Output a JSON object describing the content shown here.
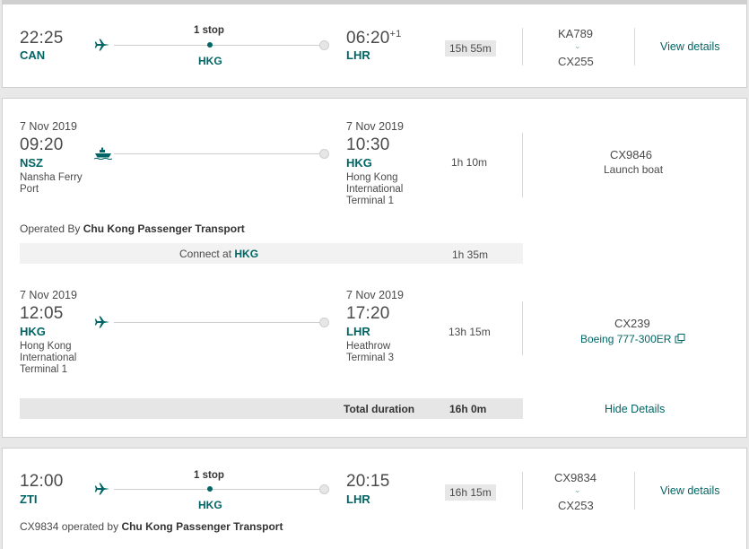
{
  "card1": {
    "dep_time": "22:25",
    "dep_code": "CAN",
    "stops": "1 stop",
    "stop_code": "HKG",
    "arr_time": "06:20",
    "arr_plus": "+1",
    "arr_code": "LHR",
    "duration": "15h 55m",
    "flight_top": "KA789",
    "flight_bottom": "CX255",
    "details_link": "View details"
  },
  "card2": {
    "seg1": {
      "dep_date": "7 Nov 2019",
      "dep_time": "09:20",
      "dep_code": "NSZ",
      "dep_place": "Nansha Ferry Port",
      "arr_date": "7 Nov 2019",
      "arr_time": "10:30",
      "arr_code": "HKG",
      "arr_place": "Hong Kong International Terminal 1",
      "duration": "1h 10m",
      "flight_no": "CX9846",
      "vehicle": "Launch boat"
    },
    "operated_prefix": "Operated By",
    "operator": "Chu Kong Passenger Transport",
    "connect_prefix": "Connect at",
    "connect_code": "HKG",
    "connect_duration": "1h 35m",
    "seg2": {
      "dep_date": "7 Nov 2019",
      "dep_time": "12:05",
      "dep_code": "HKG",
      "dep_place": "Hong Kong International Terminal 1",
      "arr_date": "7 Nov 2019",
      "arr_time": "17:20",
      "arr_code": "LHR",
      "arr_place": "Heathrow Terminal 3",
      "duration": "13h 15m",
      "flight_no": "CX239",
      "aircraft": "Boeing 777-300ER"
    },
    "total_label": "Total duration",
    "total_value": "16h 0m",
    "hide_link": "Hide Details"
  },
  "card3": {
    "dep_time": "12:00",
    "dep_code": "ZTI",
    "stops": "1 stop",
    "stop_code": "HKG",
    "arr_time": "20:15",
    "arr_code": "LHR",
    "duration": "16h 15m",
    "flight_top": "CX9834",
    "flight_bottom": "CX253",
    "details_link": "View details",
    "operated_flight": "CX9834 operated by",
    "operator": "Chu Kong Passenger Transport"
  },
  "icons": {
    "plane": "plane-icon",
    "ferry": "ferry-icon",
    "chevron": "chevron-down-icon",
    "external": "external-link-icon"
  },
  "colors": {
    "accent": "#006564",
    "text": "#4a4a4a",
    "background": "#e8e8e8"
  }
}
